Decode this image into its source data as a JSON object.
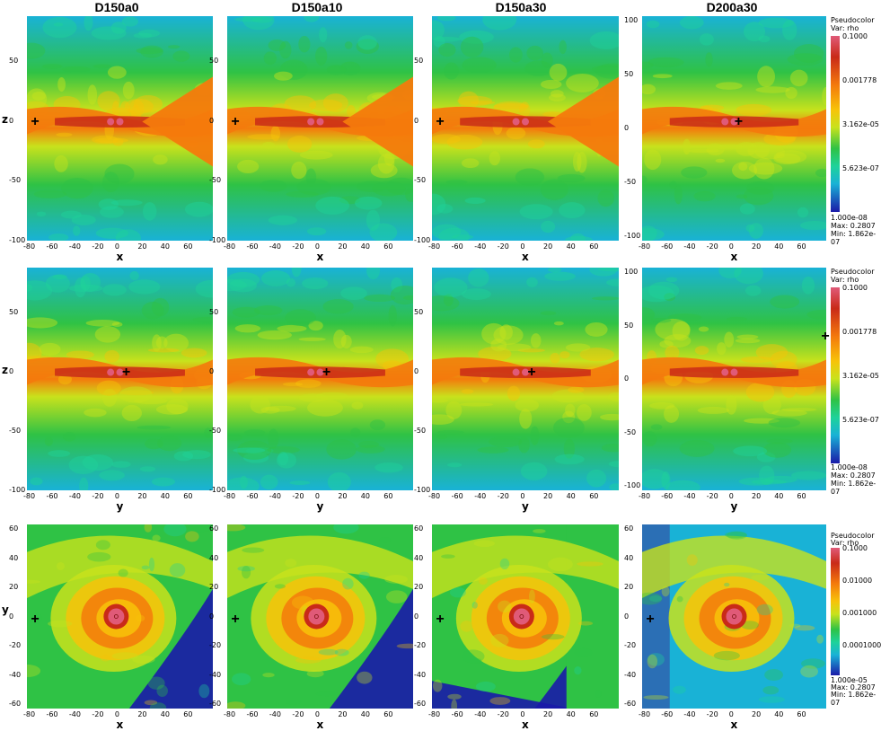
{
  "column_titles": [
    "D150a0",
    "D150a10",
    "D150a30",
    "D200a30"
  ],
  "row1": {
    "x_ticks": [
      "-80",
      "-60",
      "-40",
      "-20",
      "0",
      "20",
      "40",
      "60"
    ],
    "y_ticks": [
      "50",
      "0",
      "-50",
      "-100"
    ],
    "y_ticks_d200": [
      "100",
      "50",
      "0",
      "-50",
      "-100"
    ],
    "xlabel": "x",
    "ylabel": "z"
  },
  "row2": {
    "x_ticks": [
      "-80",
      "-60",
      "-40",
      "-20",
      "0",
      "20",
      "40",
      "60"
    ],
    "y_ticks": [
      "50",
      "0",
      "-50",
      "-100"
    ],
    "y_ticks_d200": [
      "100",
      "50",
      "0",
      "-50",
      "-100"
    ],
    "xlabel": "y",
    "ylabel": "z"
  },
  "row3": {
    "x_ticks": [
      "-80",
      "-60",
      "-40",
      "-20",
      "0",
      "20",
      "40",
      "60"
    ],
    "y_ticks": [
      "60",
      "40",
      "20",
      "0",
      "-20",
      "-40",
      "-60"
    ],
    "xlabel": "x",
    "ylabel": "y"
  },
  "legend_linear": {
    "title": "Pseudocolor",
    "var": "Var: rho",
    "levels": [
      "0.1000",
      "0.001778",
      "3.162e-05",
      "5.623e-07",
      "1.000e-08"
    ],
    "max": "Max:  0.2807",
    "min": "Min:  1.862e-07"
  },
  "legend_bottom": {
    "title": "Pseudocolor",
    "var": "Var: rho",
    "levels": [
      "0.1000",
      "0.01000",
      "0.001000",
      "0.0001000",
      "1.000e-05"
    ],
    "max": "Max: 0.2807",
    "min": "Min: 1.862e-07"
  },
  "marker_symbol": "+",
  "colors": {
    "colormap": [
      "#1a1aa8",
      "#19b2d6",
      "#1ed29a",
      "#2fc245",
      "#c8e21c",
      "#f7c309",
      "#f47a0c",
      "#c92a18",
      "#e05a78"
    ]
  }
}
